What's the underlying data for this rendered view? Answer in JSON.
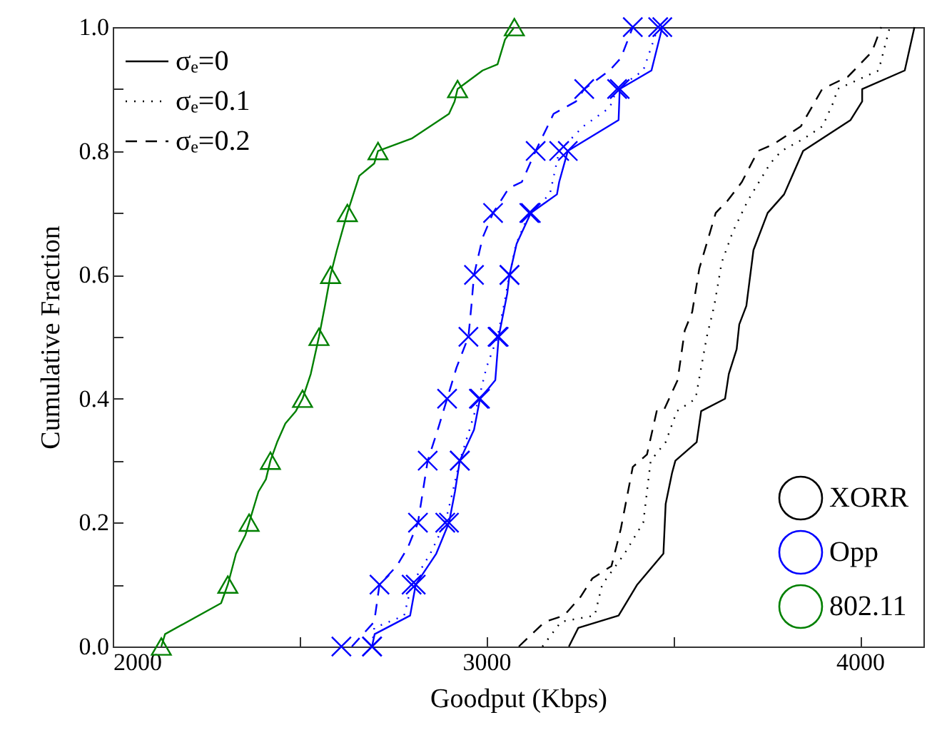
{
  "chart_data": {
    "type": "line",
    "xlabel": "Goodput (Kbps)",
    "ylabel": "Cumulative Fraction",
    "annotations": [
      "σₑ=0",
      "σₑ=0.1",
      "σₑ=0.2"
    ],
    "xlim": [
      2000,
      4170
    ],
    "xticks": [
      2000,
      {
        "value": 2500,
        "label": null
      },
      3000,
      {
        "value": 3500,
        "label": null
      },
      4000
    ],
    "ylim": [
      0,
      1
    ],
    "yticks": [
      {
        "value": 0,
        "label": "0.0"
      },
      {
        "value": 0.1,
        "label": null
      },
      0.2,
      {
        "value": 0.3,
        "label": null
      },
      0.4,
      {
        "value": 0.5,
        "label": null
      },
      0.6,
      {
        "value": 0.7,
        "label": null
      },
      0.8,
      {
        "value": 0.9,
        "label": null
      },
      {
        "value": 1,
        "label": "1.0"
      }
    ],
    "legend": "bottom right",
    "series": [
      {
        "name": "XORR",
        "color": "#000000",
        "line_style": "solid",
        "marker": "none",
        "x": [
          3221,
          3246,
          3354,
          3404,
          3474,
          3480,
          3497,
          3506,
          3563,
          3575,
          3639,
          3649,
          3670,
          3677,
          3696,
          3715,
          3753,
          3797,
          3848,
          3975,
          4006,
          4006,
          4120,
          4146
        ],
        "values": [
          0,
          0.03,
          0.05,
          0.1,
          0.15,
          0.23,
          0.28,
          0.3,
          0.33,
          0.38,
          0.4,
          0.44,
          0.48,
          0.52,
          0.55,
          0.64,
          0.7,
          0.73,
          0.8,
          0.85,
          0.88,
          0.9,
          0.93,
          1
        ]
      },
      {
        "color": "#000000",
        "line_style": "dotted",
        "marker": "none",
        "x": [
          3150,
          3200,
          3290,
          3310,
          3370,
          3420,
          3440,
          3480,
          3510,
          3560,
          3590,
          3610,
          3630,
          3660,
          3700,
          3760,
          3790,
          3850,
          3900,
          3930,
          3940,
          4050,
          4080
        ],
        "values": [
          0,
          0.04,
          0.05,
          0.1,
          0.15,
          0.2,
          0.3,
          0.33,
          0.38,
          0.4,
          0.5,
          0.55,
          0.62,
          0.67,
          0.72,
          0.78,
          0.8,
          0.82,
          0.84,
          0.88,
          0.9,
          0.93,
          1
        ]
      },
      {
        "color": "#000000",
        "line_style": "dashed",
        "marker": "none",
        "x": [
          3087,
          3157,
          3208,
          3252,
          3284,
          3335,
          3360,
          3392,
          3430,
          3456,
          3474,
          3512,
          3531,
          3551,
          3570,
          3614,
          3646,
          3684,
          3727,
          3766,
          3842,
          3899,
          3968,
          4032,
          4057
        ],
        "values": [
          0,
          0.04,
          0.05,
          0.08,
          0.11,
          0.13,
          0.19,
          0.29,
          0.31,
          0.38,
          0.38,
          0.43,
          0.51,
          0.54,
          0.61,
          0.7,
          0.72,
          0.75,
          0.8,
          0.81,
          0.84,
          0.9,
          0.92,
          0.96,
          1
        ]
      },
      {
        "name": "Opp",
        "color": "#0000ff",
        "line_style": "solid",
        "marker": "none",
        "x": [
          2694,
          2701,
          2796,
          2811,
          2866,
          2900,
          2916,
          2929,
          2967,
          2983,
          3024,
          3033,
          3056,
          3062,
          3081,
          3119,
          3189,
          3195,
          3218,
          3354,
          3357,
          3442,
          3471
        ],
        "values": [
          0,
          0.02,
          0.05,
          0.1,
          0.15,
          0.2,
          0.25,
          0.3,
          0.35,
          0.4,
          0.43,
          0.5,
          0.57,
          0.6,
          0.65,
          0.7,
          0.73,
          0.75,
          0.8,
          0.85,
          0.9,
          0.93,
          1
        ]
      },
      {
        "color": "#0000ff",
        "line_style": "dotted",
        "marker": "none",
        "x": [
          2694,
          2700,
          2780,
          2800,
          2850,
          2890,
          2910,
          2929,
          2955,
          2980,
          3000,
          3030,
          3050,
          3062,
          3080,
          3115,
          3170,
          3195,
          3260,
          3330,
          3350,
          3420,
          3460
        ],
        "values": [
          0,
          0.03,
          0.05,
          0.1,
          0.15,
          0.2,
          0.25,
          0.3,
          0.35,
          0.4,
          0.45,
          0.5,
          0.56,
          0.6,
          0.65,
          0.7,
          0.73,
          0.8,
          0.84,
          0.87,
          0.9,
          0.93,
          1
        ]
      },
      {
        "color": "#0000ff",
        "line_style": "dashed",
        "marker": "none",
        "x": [
          2640,
          2700,
          2714,
          2760,
          2790,
          2817,
          2830,
          2843,
          2870,
          2895,
          2920,
          2952,
          2960,
          2967,
          2990,
          3018,
          3060,
          3095,
          3132,
          3180,
          3240,
          3262,
          3330,
          3360,
          3392
        ],
        "values": [
          0,
          0.04,
          0.1,
          0.13,
          0.16,
          0.2,
          0.25,
          0.3,
          0.35,
          0.4,
          0.45,
          0.5,
          0.55,
          0.6,
          0.66,
          0.7,
          0.74,
          0.75,
          0.8,
          0.86,
          0.88,
          0.9,
          0.93,
          0.95,
          1
        ]
      },
      {
        "type": "scatter",
        "color": "#0000ff",
        "marker": "cross",
        "x": [
          2694,
          2811,
          2900,
          2929,
          2983,
          3033,
          3062,
          3119,
          3218,
          3357,
          3471
        ],
        "values": [
          0,
          0.1,
          0.2,
          0.3,
          0.4,
          0.5,
          0.6,
          0.7,
          0.8,
          0.9,
          1
        ]
      },
      {
        "type": "scatter",
        "color": "#0000ff",
        "marker": "cross",
        "x": [
          2694,
          2800,
          2890,
          2929,
          2980,
          3030,
          3062,
          3115,
          3195,
          3350,
          3460
        ],
        "values": [
          0,
          0.1,
          0.2,
          0.3,
          0.4,
          0.5,
          0.6,
          0.7,
          0.8,
          0.9,
          1
        ]
      },
      {
        "type": "scatter",
        "color": "#0000ff",
        "marker": "cross",
        "x": [
          2612,
          2714,
          2817,
          2843,
          2895,
          2952,
          2967,
          3018,
          3132,
          3262,
          3392
        ],
        "values": [
          0,
          0.1,
          0.2,
          0.3,
          0.4,
          0.5,
          0.6,
          0.7,
          0.8,
          0.9,
          1
        ]
      },
      {
        "name": "802.11",
        "color": "#008000",
        "line_style": "solid",
        "marker": "none",
        "x": [
          2130,
          2140,
          2290,
          2308,
          2330,
          2355,
          2365,
          2390,
          2410,
          2422,
          2440,
          2462,
          2490,
          2508,
          2530,
          2552,
          2568,
          2583,
          2600,
          2628,
          2660,
          2700,
          2710,
          2800,
          2900,
          2915,
          2923,
          2990,
          3030,
          3050,
          3075
        ],
        "values": [
          0,
          0.02,
          0.07,
          0.1,
          0.15,
          0.18,
          0.2,
          0.25,
          0.27,
          0.3,
          0.33,
          0.36,
          0.38,
          0.4,
          0.44,
          0.5,
          0.55,
          0.6,
          0.64,
          0.7,
          0.76,
          0.78,
          0.8,
          0.82,
          0.86,
          0.88,
          0.9,
          0.93,
          0.94,
          0.98,
          1
        ]
      },
      {
        "type": "scatter",
        "color": "#008000",
        "marker": "triangle",
        "x": [
          2130,
          2308,
          2365,
          2422,
          2508,
          2552,
          2583,
          2628,
          2710,
          2923,
          3075
        ],
        "values": [
          0,
          0.1,
          0.2,
          0.3,
          0.4,
          0.5,
          0.6,
          0.7,
          0.8,
          0.9,
          1
        ]
      }
    ]
  }
}
